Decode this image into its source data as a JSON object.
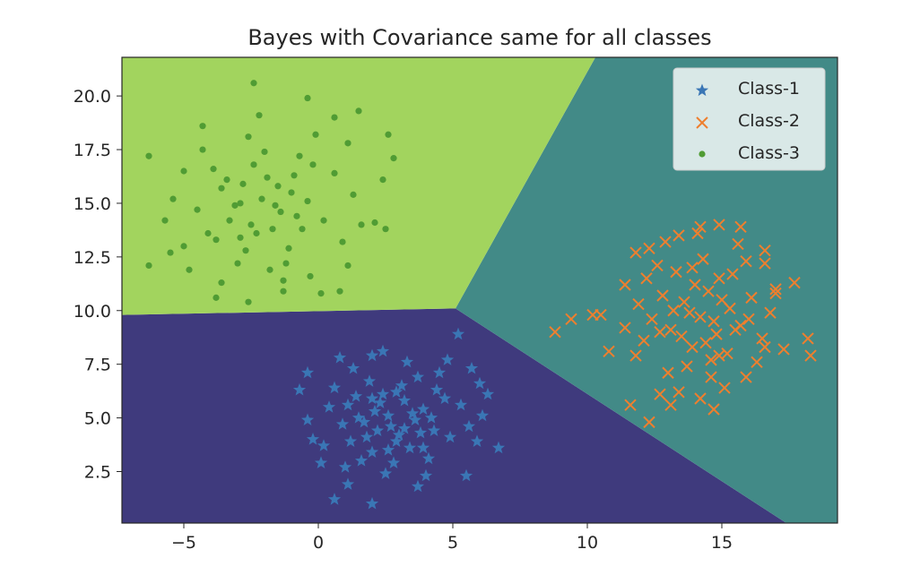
{
  "chart_data": {
    "type": "scatter",
    "title": "Bayes with Covariance same for all classes",
    "xlabel": "",
    "ylabel": "",
    "xlim": [
      -7.3,
      19.3
    ],
    "ylim": [
      0.1,
      21.8
    ],
    "x_ticks": [
      {
        "value": -5,
        "label": "−5"
      },
      {
        "value": 0,
        "label": "0"
      },
      {
        "value": 5,
        "label": "5"
      },
      {
        "value": 10,
        "label": "10"
      },
      {
        "value": 15,
        "label": "15"
      }
    ],
    "y_ticks": [
      {
        "value": 2.5,
        "label": "2.5"
      },
      {
        "value": 5.0,
        "label": "5.0"
      },
      {
        "value": 7.5,
        "label": "7.5"
      },
      {
        "value": 10.0,
        "label": "10.0"
      },
      {
        "value": 12.5,
        "label": "12.5"
      },
      {
        "value": 15.0,
        "label": "15.0"
      },
      {
        "value": 17.5,
        "label": "17.5"
      },
      {
        "value": 20.0,
        "label": "20.0"
      }
    ],
    "legend_position": "top-right",
    "grid": false,
    "decision_regions": [
      {
        "class": "Class-1",
        "color": "#3f3a7d",
        "vertices": [
          [
            -7.3,
            0.1
          ],
          [
            17.4,
            0.1
          ],
          [
            5.1,
            10.1
          ],
          [
            -7.3,
            9.8
          ]
        ]
      },
      {
        "class": "Class-2",
        "color": "#428a87",
        "vertices": [
          [
            17.4,
            0.1
          ],
          [
            19.3,
            0.1
          ],
          [
            19.3,
            21.8
          ],
          [
            10.3,
            21.8
          ],
          [
            5.1,
            10.1
          ]
        ]
      },
      {
        "class": "Class-3",
        "color": "#a2d45e",
        "vertices": [
          [
            -7.3,
            9.8
          ],
          [
            5.1,
            10.1
          ],
          [
            10.3,
            21.8
          ],
          [
            -7.3,
            21.8
          ]
        ]
      }
    ],
    "series": [
      {
        "name": "Class-1",
        "marker": "star",
        "color": "#3a76b5",
        "points": [
          [
            2.7,
            4.6
          ],
          [
            2.1,
            5.3
          ],
          [
            3.2,
            5.8
          ],
          [
            1.8,
            4.1
          ],
          [
            3.6,
            4.9
          ],
          [
            2.4,
            6.1
          ],
          [
            2.9,
            3.9
          ],
          [
            1.5,
            5.0
          ],
          [
            3.9,
            5.4
          ],
          [
            2.2,
            4.4
          ],
          [
            3.1,
            6.5
          ],
          [
            1.1,
            5.6
          ],
          [
            4.3,
            4.4
          ],
          [
            2.6,
            5.1
          ],
          [
            1.9,
            6.7
          ],
          [
            3.4,
            3.6
          ],
          [
            0.9,
            4.7
          ],
          [
            4.7,
            5.9
          ],
          [
            2.0,
            3.4
          ],
          [
            3.7,
            6.9
          ],
          [
            1.3,
            7.3
          ],
          [
            4.9,
            4.1
          ],
          [
            0.4,
            5.5
          ],
          [
            5.3,
            5.6
          ],
          [
            2.8,
            2.9
          ],
          [
            1.6,
            3.0
          ],
          [
            4.1,
            3.1
          ],
          [
            0.6,
            6.4
          ],
          [
            5.6,
            4.6
          ],
          [
            3.3,
            7.6
          ],
          [
            2.0,
            7.9
          ],
          [
            -0.4,
            4.9
          ],
          [
            6.1,
            5.1
          ],
          [
            2.5,
            2.4
          ],
          [
            4.5,
            7.1
          ],
          [
            0.2,
            3.7
          ],
          [
            5.9,
            3.9
          ],
          [
            1.0,
            2.7
          ],
          [
            4.0,
            2.3
          ],
          [
            3.0,
            4.2
          ],
          [
            2.3,
            5.7
          ],
          [
            3.5,
            5.2
          ],
          [
            1.7,
            4.8
          ],
          [
            2.9,
            6.2
          ],
          [
            4.2,
            5.0
          ],
          [
            2.0,
            5.9
          ],
          [
            3.8,
            4.3
          ],
          [
            1.4,
            6.0
          ],
          [
            2.6,
            3.5
          ],
          [
            3.2,
            4.5
          ],
          [
            -0.7,
            6.3
          ],
          [
            -0.4,
            7.1
          ],
          [
            0.8,
            7.8
          ],
          [
            6.7,
            3.6
          ],
          [
            5.2,
            8.9
          ],
          [
            6.3,
            6.1
          ],
          [
            5.7,
            7.3
          ],
          [
            0.6,
            1.2
          ],
          [
            2.0,
            1.0
          ],
          [
            3.7,
            1.8
          ],
          [
            5.5,
            2.3
          ],
          [
            1.1,
            1.9
          ],
          [
            4.8,
            7.7
          ],
          [
            -0.2,
            4.0
          ],
          [
            6.0,
            6.6
          ],
          [
            0.1,
            2.9
          ],
          [
            2.4,
            8.1
          ],
          [
            4.4,
            6.3
          ],
          [
            1.2,
            3.9
          ],
          [
            3.9,
            3.6
          ]
        ]
      },
      {
        "name": "Class-2",
        "marker": "x",
        "color": "#ee7f2e",
        "points": [
          [
            14.2,
            9.7
          ],
          [
            13.6,
            10.4
          ],
          [
            14.8,
            8.9
          ],
          [
            13.1,
            9.1
          ],
          [
            15.3,
            10.1
          ],
          [
            14.0,
            11.2
          ],
          [
            12.8,
            10.7
          ],
          [
            15.7,
            9.3
          ],
          [
            13.9,
            8.3
          ],
          [
            14.5,
            10.9
          ],
          [
            12.4,
            9.6
          ],
          [
            16.1,
            10.6
          ],
          [
            13.3,
            11.8
          ],
          [
            14.9,
            7.9
          ],
          [
            15.4,
            11.7
          ],
          [
            12.1,
            8.6
          ],
          [
            16.5,
            8.7
          ],
          [
            13.7,
            7.4
          ],
          [
            14.3,
            12.4
          ],
          [
            11.9,
            10.3
          ],
          [
            16.8,
            9.9
          ],
          [
            15.9,
            12.3
          ],
          [
            12.6,
            12.1
          ],
          [
            14.6,
            6.9
          ],
          [
            13.0,
            7.1
          ],
          [
            17.0,
            11.0
          ],
          [
            11.4,
            9.2
          ],
          [
            15.1,
            6.4
          ],
          [
            12.9,
            13.2
          ],
          [
            16.3,
            7.6
          ],
          [
            14.1,
            13.6
          ],
          [
            11.8,
            7.9
          ],
          [
            17.3,
            8.2
          ],
          [
            15.6,
            13.1
          ],
          [
            13.4,
            6.2
          ],
          [
            12.2,
            11.5
          ],
          [
            16.6,
            12.8
          ],
          [
            13.8,
            9.9
          ],
          [
            14.7,
            9.5
          ],
          [
            15.0,
            10.5
          ],
          [
            13.5,
            8.8
          ],
          [
            14.4,
            8.5
          ],
          [
            15.5,
            9.1
          ],
          [
            13.2,
            10.0
          ],
          [
            14.9,
            11.5
          ],
          [
            12.7,
            9.0
          ],
          [
            16.0,
            9.6
          ],
          [
            13.9,
            12.0
          ],
          [
            14.6,
            7.7
          ],
          [
            15.2,
            8.0
          ],
          [
            14.2,
            13.9
          ],
          [
            14.9,
            14.0
          ],
          [
            15.7,
            13.9
          ],
          [
            13.4,
            13.5
          ],
          [
            16.6,
            12.2
          ],
          [
            12.3,
            12.9
          ],
          [
            11.8,
            12.7
          ],
          [
            18.2,
            8.7
          ],
          [
            18.3,
            7.9
          ],
          [
            17.7,
            11.3
          ],
          [
            17.0,
            10.8
          ],
          [
            10.5,
            9.8
          ],
          [
            10.2,
            9.8
          ],
          [
            9.4,
            9.6
          ],
          [
            8.8,
            9.0
          ],
          [
            10.8,
            8.1
          ],
          [
            11.4,
            11.2
          ],
          [
            11.6,
            5.6
          ],
          [
            12.3,
            4.8
          ],
          [
            14.7,
            5.4
          ],
          [
            12.7,
            6.1
          ],
          [
            14.2,
            5.9
          ],
          [
            15.9,
            6.9
          ],
          [
            16.6,
            8.3
          ],
          [
            13.1,
            5.6
          ]
        ]
      },
      {
        "name": "Class-3",
        "marker": "dot",
        "color": "#509c34",
        "points": [
          [
            -2.1,
            15.2
          ],
          [
            -1.4,
            14.6
          ],
          [
            -2.8,
            15.9
          ],
          [
            -0.9,
            16.3
          ],
          [
            -3.3,
            14.2
          ],
          [
            -1.7,
            13.8
          ],
          [
            -2.4,
            16.8
          ],
          [
            -0.4,
            15.1
          ],
          [
            -3.6,
            15.7
          ],
          [
            -1.1,
            12.9
          ],
          [
            -2.9,
            13.4
          ],
          [
            0.2,
            14.2
          ],
          [
            -4.1,
            13.6
          ],
          [
            -0.7,
            17.2
          ],
          [
            -3.9,
            16.6
          ],
          [
            -1.8,
            11.9
          ],
          [
            0.6,
            16.4
          ],
          [
            -4.5,
            14.7
          ],
          [
            -2.6,
            18.1
          ],
          [
            0.9,
            13.2
          ],
          [
            -3.0,
            12.2
          ],
          [
            -0.1,
            18.2
          ],
          [
            -5.0,
            13.0
          ],
          [
            1.3,
            15.4
          ],
          [
            -1.3,
            10.9
          ],
          [
            -4.3,
            17.5
          ],
          [
            1.1,
            17.8
          ],
          [
            -3.6,
            11.3
          ],
          [
            -5.4,
            15.2
          ],
          [
            -0.3,
            11.6
          ],
          [
            1.6,
            14.0
          ],
          [
            -2.2,
            19.1
          ],
          [
            -4.8,
            11.9
          ],
          [
            2.4,
            16.1
          ],
          [
            -1.6,
            14.9
          ],
          [
            -2.5,
            14.0
          ],
          [
            -1.0,
            15.5
          ],
          [
            -3.1,
            14.9
          ],
          [
            -1.9,
            16.2
          ],
          [
            -2.7,
            12.8
          ],
          [
            -0.6,
            13.8
          ],
          [
            -3.4,
            16.1
          ],
          [
            -1.5,
            15.8
          ],
          [
            -2.3,
            13.6
          ],
          [
            -0.8,
            14.4
          ],
          [
            -2.0,
            17.4
          ],
          [
            -3.8,
            13.3
          ],
          [
            -0.2,
            16.8
          ],
          [
            -1.2,
            12.2
          ],
          [
            -2.9,
            15.0
          ],
          [
            -2.4,
            20.6
          ],
          [
            -0.4,
            19.9
          ],
          [
            0.6,
            19.0
          ],
          [
            2.6,
            18.2
          ],
          [
            2.8,
            17.1
          ],
          [
            1.5,
            19.3
          ],
          [
            -6.3,
            17.2
          ],
          [
            -5.7,
            14.2
          ],
          [
            -5.5,
            12.7
          ],
          [
            -6.3,
            12.1
          ],
          [
            -3.8,
            10.6
          ],
          [
            -2.6,
            10.4
          ],
          [
            -1.3,
            11.4
          ],
          [
            0.8,
            10.9
          ],
          [
            2.1,
            14.1
          ],
          [
            2.5,
            13.8
          ],
          [
            -5.0,
            16.5
          ],
          [
            -4.3,
            18.6
          ],
          [
            1.1,
            12.1
          ],
          [
            0.1,
            10.8
          ]
        ]
      }
    ]
  }
}
